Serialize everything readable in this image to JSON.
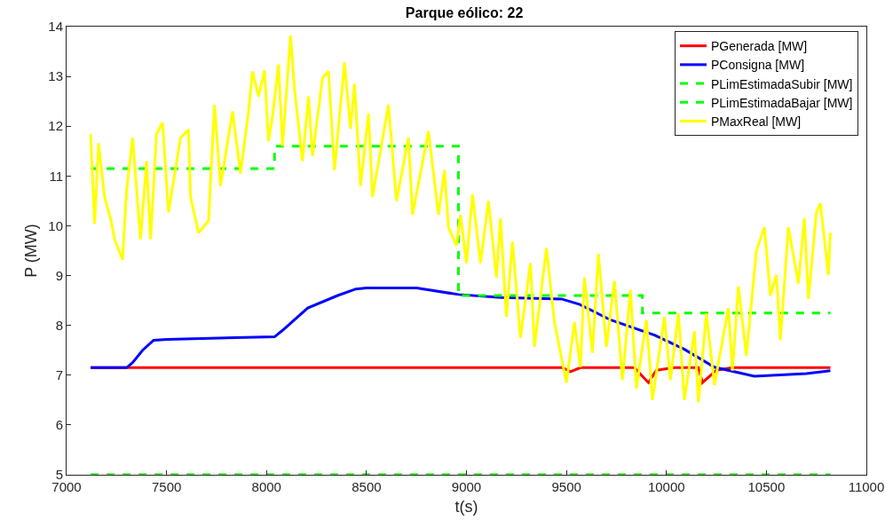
{
  "chart_data": {
    "type": "line",
    "title": "Parque eólico: 22",
    "xlabel": "t(s)",
    "ylabel": "P (MW)",
    "xlim": [
      7000,
      11000
    ],
    "xticks": [
      7000,
      7500,
      8000,
      8500,
      9000,
      9500,
      10000,
      10500,
      11000
    ],
    "ylim": [
      5,
      14
    ],
    "yticks": [
      5,
      6,
      7,
      8,
      9,
      10,
      11,
      12,
      13,
      14
    ],
    "grid": false,
    "legend": "top right",
    "marker": "none",
    "series": [
      {
        "name": "PGenerada [MW]",
        "color": "#ff0000",
        "line_style": "solid",
        "x": [
          7120,
          9480,
          9520,
          9570,
          9840,
          9910,
          9950,
          10040,
          10160,
          10180,
          10250,
          10330,
          10820
        ],
        "values": [
          7.15,
          7.15,
          7.07,
          7.15,
          7.15,
          6.85,
          7.1,
          7.15,
          7.15,
          6.85,
          7.1,
          7.15,
          7.15
        ]
      },
      {
        "name": "PConsigna [MW]",
        "color": "#0000ff",
        "line_style": "solid",
        "x": [
          7120,
          7300,
          7330,
          7380,
          7435,
          7500,
          8040,
          8080,
          8206,
          8356,
          8447,
          8500,
          8750,
          8960,
          9172,
          9476,
          9567,
          9720,
          9943,
          10090,
          10240,
          10440,
          10700,
          10820
        ],
        "values": [
          7.15,
          7.15,
          7.25,
          7.5,
          7.7,
          7.72,
          7.77,
          7.9,
          8.35,
          8.6,
          8.73,
          8.75,
          8.75,
          8.62,
          8.56,
          8.53,
          8.42,
          8.11,
          7.8,
          7.52,
          7.16,
          6.98,
          7.03,
          7.09
        ]
      },
      {
        "name": "PLimEstimadaSubir [MW]",
        "color": "#00ff00",
        "line_style": "dashed",
        "x": [
          7120,
          8040,
          8040,
          8960,
          8960,
          9880,
          9880,
          10820
        ],
        "values": [
          11.15,
          11.15,
          11.6,
          11.6,
          8.6,
          8.6,
          8.25,
          8.25
        ]
      },
      {
        "name": "PLimEstimadaBajar [MW]",
        "color": "#00ff00",
        "line_style": "dashed",
        "x": [
          7120,
          10820
        ],
        "values": [
          5,
          5
        ]
      },
      {
        "name": "PMaxReal [MW]",
        "color": "#ffff00",
        "line_style": "solid",
        "x": [
          7120,
          7140,
          7160,
          7190,
          7220,
          7240,
          7280,
          7300,
          7330,
          7370,
          7400,
          7420,
          7450,
          7480,
          7510,
          7570,
          7610,
          7620,
          7660,
          7710,
          7740,
          7770,
          7830,
          7870,
          7910,
          7930,
          7960,
          7990,
          8010,
          8030,
          8060,
          8080,
          8120,
          8140,
          8180,
          8210,
          8230,
          8280,
          8310,
          8340,
          8390,
          8420,
          8440,
          8470,
          8510,
          8530,
          8610,
          8650,
          8710,
          8730,
          8810,
          8860,
          8890,
          8910,
          8950,
          8970,
          9000,
          9030,
          9070,
          9110,
          9150,
          9170,
          9200,
          9230,
          9270,
          9320,
          9340,
          9400,
          9440,
          9500,
          9540,
          9570,
          9590,
          9630,
          9660,
          9700,
          9740,
          9780,
          9820,
          9850,
          9900,
          9930,
          9990,
          10020,
          10060,
          10090,
          10140,
          10160,
          10200,
          10240,
          10310,
          10330,
          10360,
          10400,
          10450,
          10490,
          10520,
          10550,
          10570,
          10610,
          10660,
          10690,
          10710,
          10750,
          10770,
          10810,
          10820
        ],
        "values": [
          11.84,
          10.04,
          11.66,
          10.58,
          10.15,
          9.73,
          9.32,
          10.7,
          11.77,
          9.73,
          11.3,
          9.73,
          11.84,
          12.07,
          10.27,
          11.77,
          11.93,
          10.58,
          9.86,
          10.1,
          12.43,
          10.8,
          12.3,
          11.05,
          12.3,
          13.1,
          12.6,
          13.12,
          11.7,
          12.2,
          13.24,
          11.6,
          13.82,
          12.74,
          11.3,
          12.6,
          11.4,
          12.97,
          13.1,
          11.12,
          13.28,
          11.95,
          12.85,
          10.8,
          12.25,
          10.58,
          12.43,
          10.5,
          11.77,
          10.22,
          11.9,
          10.22,
          11.12,
          9.97,
          9.6,
          10.22,
          9.25,
          10.63,
          9.25,
          10.5,
          8.96,
          10.15,
          8.17,
          9.68,
          7.75,
          9.25,
          7.57,
          9.55,
          8.06,
          6.85,
          8.06,
          7.16,
          8.96,
          7.45,
          9.43,
          7.57,
          8.89,
          6.9,
          8.71,
          6.73,
          8.11,
          6.5,
          8.17,
          6.9,
          8.24,
          6.5,
          7.88,
          6.46,
          8.24,
          6.8,
          8.35,
          7.09,
          8.78,
          7.39,
          9.5,
          9.97,
          8.6,
          9.01,
          7.7,
          9.97,
          8.84,
          10.15,
          8.53,
          10.27,
          10.45,
          9.01,
          9.86
        ]
      }
    ]
  }
}
